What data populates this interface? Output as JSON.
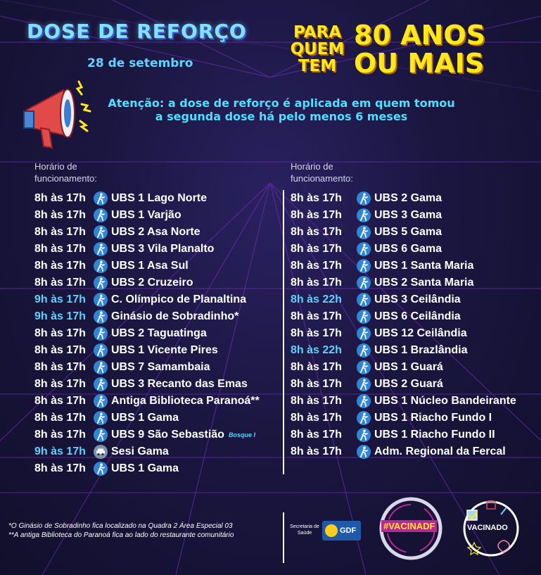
{
  "header": {
    "title": "DOSE DE REFORÇO",
    "date": "28 de setembro",
    "para_lines": [
      "PARA",
      "QUEM",
      "TEM"
    ],
    "anos_lines": [
      "80 ANOS",
      "OU MAIS"
    ]
  },
  "attention": {
    "line1": "Atenção: a dose de reforço é aplicada em quem tomou",
    "line2": "a segunda dose há pelo menos 6 meses"
  },
  "left_column": {
    "heading_line1": "Horário de",
    "heading_line2": "funcionamento:",
    "rows": [
      {
        "hours": "8h às 17h",
        "place": "UBS 1 Lago Norte",
        "icon": "walk-icon",
        "hours_color": "white"
      },
      {
        "hours": "8h às 17h",
        "place": "UBS 1 Varjão",
        "icon": "walk-icon",
        "hours_color": "white"
      },
      {
        "hours": "8h às 17h",
        "place": "UBS 2 Asa Norte",
        "icon": "walk-icon",
        "hours_color": "white"
      },
      {
        "hours": "8h às 17h",
        "place": "UBS 3 Vila Planalto",
        "icon": "walk-icon",
        "hours_color": "white"
      },
      {
        "hours": "8h às 17h",
        "place": "UBS 1 Asa Sul",
        "icon": "walk-icon",
        "hours_color": "white"
      },
      {
        "hours": "8h às 17h",
        "place": "UBS 2 Cruzeiro",
        "icon": "walk-icon",
        "hours_color": "white"
      },
      {
        "hours": "9h às 17h",
        "place": "C. Olímpico de Planaltina",
        "icon": "walk-icon",
        "hours_color": "cyan"
      },
      {
        "hours": "9h às 17h",
        "place": "Ginásio de Sobradinho*",
        "icon": "walk-icon",
        "hours_color": "cyan"
      },
      {
        "hours": "8h às 17h",
        "place": "UBS 2 Taguatinga",
        "icon": "walk-icon",
        "hours_color": "white"
      },
      {
        "hours": "8h às 17h",
        "place": "UBS 1 Vicente Pires",
        "icon": "walk-icon",
        "hours_color": "white"
      },
      {
        "hours": "8h às 17h",
        "place": "UBS 7 Samambaia",
        "icon": "walk-icon",
        "hours_color": "white"
      },
      {
        "hours": "8h às 17h",
        "place": "UBS 3 Recanto das Emas",
        "icon": "walk-icon",
        "hours_color": "white"
      },
      {
        "hours": "8h às 17h",
        "place": "Antiga Biblioteca Paranoá**",
        "icon": "walk-icon",
        "hours_color": "white"
      },
      {
        "hours": "8h às 17h",
        "place": "UBS 1 Gama",
        "icon": "walk-icon",
        "hours_color": "white"
      },
      {
        "hours": "8h às 17h",
        "place": "UBS 9 São Sebastião",
        "icon": "walk-icon",
        "hours_color": "white",
        "note": "Bosque I"
      },
      {
        "hours": "9h às 17h",
        "place": "Sesi Gama",
        "icon": "car-icon",
        "hours_color": "cyan"
      },
      {
        "hours": "8h às 17h",
        "place": "UBS 1 Gama",
        "icon": "walk-icon",
        "hours_color": "white"
      }
    ]
  },
  "right_column": {
    "heading_line1": "Horário de",
    "heading_line2": "funcionamento:",
    "rows": [
      {
        "hours": "8h às 17h",
        "place": "UBS 2 Gama",
        "icon": "walk-icon",
        "hours_color": "white"
      },
      {
        "hours": "8h às 17h",
        "place": "UBS 3 Gama",
        "icon": "walk-icon",
        "hours_color": "white"
      },
      {
        "hours": "8h às 17h",
        "place": "UBS 5 Gama",
        "icon": "walk-icon",
        "hours_color": "white"
      },
      {
        "hours": "8h às 17h",
        "place": "UBS 6 Gama",
        "icon": "walk-icon",
        "hours_color": "white"
      },
      {
        "hours": "8h às 17h",
        "place": "UBS 1 Santa Maria",
        "icon": "walk-icon",
        "hours_color": "white"
      },
      {
        "hours": "8h às 17h",
        "place": "UBS 2 Santa Maria",
        "icon": "walk-icon",
        "hours_color": "white"
      },
      {
        "hours": "8h às 22h",
        "place": "UBS 3 Ceilândia",
        "icon": "walk-icon",
        "hours_color": "cyan"
      },
      {
        "hours": "8h às 17h",
        "place": "UBS 6 Ceilândia",
        "icon": "walk-icon",
        "hours_color": "white"
      },
      {
        "hours": "8h às 17h",
        "place": "UBS 12 Ceilândia",
        "icon": "walk-icon",
        "hours_color": "white"
      },
      {
        "hours": "8h às 22h",
        "place": "UBS 1 Brazlândia",
        "icon": "walk-icon",
        "hours_color": "cyan"
      },
      {
        "hours": "8h às 17h",
        "place": "UBS 1 Guará",
        "icon": "walk-icon",
        "hours_color": "white"
      },
      {
        "hours": "8h às 17h",
        "place": "UBS 2 Guará",
        "icon": "walk-icon",
        "hours_color": "white"
      },
      {
        "hours": "8h às 17h",
        "place": "UBS 1 Núcleo Bandeirante",
        "icon": "walk-icon",
        "hours_color": "white"
      },
      {
        "hours": "8h às 17h",
        "place": "UBS 1 Riacho Fundo I",
        "icon": "walk-icon",
        "hours_color": "white"
      },
      {
        "hours": "8h às 17h",
        "place": "UBS 1 Riacho Fundo II",
        "icon": "walk-icon",
        "hours_color": "white"
      },
      {
        "hours": "8h às 17h",
        "place": "Adm. Regional da Fercal",
        "icon": "walk-icon",
        "hours_color": "white"
      }
    ]
  },
  "footer": {
    "note1": "*O Ginásio de Sobradinho fica localizado na Quadra 2 Área Especial 03",
    "note2": "**A antiga Biblioteca do Paranoá fica ao lado do restaurante comunitário",
    "secretaria": "Secretaria de Saúde",
    "gdf": "GDF",
    "hashtag": "#VACINADF",
    "vacinado": "VACINADO"
  },
  "colors": {
    "cyan": "#5fd4ff",
    "yellow": "#ffe81a",
    "background": "#1a1538",
    "icon_blue": "#2f86d6"
  }
}
